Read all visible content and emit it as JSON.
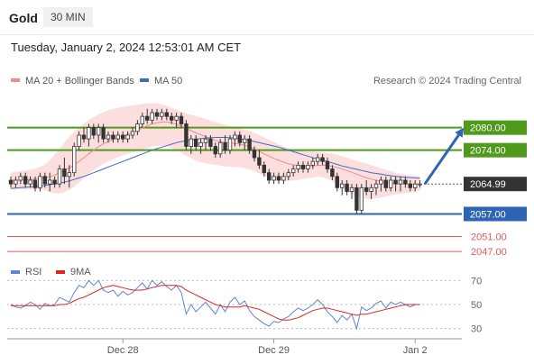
{
  "header": {
    "title": "Gold",
    "timeframe": "30 MIN"
  },
  "date_line": "Tuesday, January 2, 2024 12:53:01 AM CET",
  "legend": {
    "ma20": {
      "label": "MA 20 + Bollinger Bands",
      "color": "#f28b8b"
    },
    "ma50": {
      "label": "MA 50",
      "color": "#3b6fc2"
    }
  },
  "credit": "Research © 2024 Trading Central",
  "rsi_legend": {
    "rsi": {
      "label": "RSI",
      "color": "#5b86d6"
    },
    "ma9": {
      "label": "9MA",
      "color": "#e0221f"
    }
  },
  "chart_data": [
    {
      "type": "candlestick",
      "ylim": [
        2042,
        2090
      ],
      "x_ticks": [
        {
          "label": "Dec 28",
          "bar": 23
        },
        {
          "label": "Dec 29",
          "bar": 54
        },
        {
          "label": "Jan 2",
          "bar": 83
        }
      ],
      "ohlc": [
        [
          2066,
          2067,
          2064,
          2065
        ],
        [
          2065,
          2067,
          2064,
          2066
        ],
        [
          2066,
          2068,
          2065,
          2067
        ],
        [
          2067,
          2068,
          2064,
          2065
        ],
        [
          2065,
          2067,
          2064,
          2066
        ],
        [
          2066,
          2067,
          2063,
          2064
        ],
        [
          2064,
          2068,
          2063,
          2067
        ],
        [
          2067,
          2068,
          2064,
          2065
        ],
        [
          2065,
          2068,
          2063,
          2066
        ],
        [
          2066,
          2067,
          2064,
          2065
        ],
        [
          2065,
          2070,
          2064,
          2069
        ],
        [
          2069,
          2072,
          2065,
          2067
        ],
        [
          2067,
          2070,
          2064,
          2068
        ],
        [
          2068,
          2076,
          2067,
          2075
        ],
        [
          2075,
          2079,
          2074,
          2078
        ],
        [
          2078,
          2080,
          2076,
          2077
        ],
        [
          2077,
          2081,
          2075,
          2080
        ],
        [
          2080,
          2081,
          2077,
          2078
        ],
        [
          2078,
          2081,
          2076,
          2080
        ],
        [
          2080,
          2081,
          2076,
          2077
        ],
        [
          2077,
          2079,
          2076,
          2078
        ],
        [
          2078,
          2079,
          2076,
          2077
        ],
        [
          2077,
          2079,
          2076,
          2078
        ],
        [
          2078,
          2079,
          2076,
          2077
        ],
        [
          2077,
          2079,
          2076,
          2078
        ],
        [
          2078,
          2080,
          2077,
          2079
        ],
        [
          2079,
          2082,
          2078,
          2081
        ],
        [
          2081,
          2084,
          2080,
          2083
        ],
        [
          2083,
          2085,
          2081,
          2082
        ],
        [
          2082,
          2085,
          2081,
          2084
        ],
        [
          2084,
          2085,
          2082,
          2083
        ],
        [
          2083,
          2085,
          2082,
          2084
        ],
        [
          2084,
          2085,
          2082,
          2083
        ],
        [
          2083,
          2084,
          2081,
          2082
        ],
        [
          2082,
          2084,
          2080,
          2083
        ],
        [
          2083,
          2084,
          2080,
          2081
        ],
        [
          2081,
          2082,
          2074,
          2075
        ],
        [
          2075,
          2078,
          2073,
          2077
        ],
        [
          2077,
          2078,
          2074,
          2075
        ],
        [
          2075,
          2077,
          2073,
          2076
        ],
        [
          2076,
          2078,
          2074,
          2077
        ],
        [
          2077,
          2078,
          2074,
          2075
        ],
        [
          2075,
          2076,
          2072,
          2073
        ],
        [
          2073,
          2077,
          2072,
          2076
        ],
        [
          2076,
          2078,
          2073,
          2074
        ],
        [
          2074,
          2078,
          2073,
          2077
        ],
        [
          2077,
          2079,
          2075,
          2078
        ],
        [
          2078,
          2079,
          2075,
          2076
        ],
        [
          2076,
          2078,
          2074,
          2077
        ],
        [
          2077,
          2078,
          2073,
          2074
        ],
        [
          2074,
          2075,
          2071,
          2072
        ],
        [
          2072,
          2074,
          2069,
          2070
        ],
        [
          2070,
          2071,
          2067,
          2068
        ],
        [
          2068,
          2069,
          2065,
          2066
        ],
        [
          2066,
          2068,
          2065,
          2067
        ],
        [
          2067,
          2068,
          2065,
          2066
        ],
        [
          2066,
          2068,
          2065,
          2067
        ],
        [
          2067,
          2069,
          2066,
          2068
        ],
        [
          2068,
          2070,
          2067,
          2069
        ],
        [
          2069,
          2071,
          2068,
          2070
        ],
        [
          2070,
          2071,
          2068,
          2069
        ],
        [
          2069,
          2071,
          2068,
          2070
        ],
        [
          2070,
          2072,
          2069,
          2071
        ],
        [
          2071,
          2073,
          2070,
          2072
        ],
        [
          2072,
          2073,
          2070,
          2071
        ],
        [
          2071,
          2072,
          2068,
          2069
        ],
        [
          2069,
          2070,
          2066,
          2067
        ],
        [
          2067,
          2068,
          2063,
          2064
        ],
        [
          2064,
          2066,
          2062,
          2065
        ],
        [
          2065,
          2066,
          2062,
          2063
        ],
        [
          2063,
          2065,
          2061,
          2064
        ],
        [
          2064,
          2065,
          2057,
          2058
        ],
        [
          2058,
          2065,
          2057,
          2064
        ],
        [
          2064,
          2066,
          2062,
          2063
        ],
        [
          2063,
          2065,
          2061,
          2064
        ],
        [
          2064,
          2066,
          2062,
          2065
        ],
        [
          2065,
          2067,
          2063,
          2066
        ],
        [
          2066,
          2067,
          2063,
          2064
        ],
        [
          2064,
          2067,
          2063,
          2066
        ],
        [
          2066,
          2067,
          2063,
          2065
        ],
        [
          2065,
          2067,
          2063,
          2066
        ],
        [
          2066,
          2067,
          2064,
          2065
        ],
        [
          2065,
          2066,
          2063,
          2064
        ],
        [
          2064,
          2066,
          2063,
          2065
        ],
        [
          2065,
          2066,
          2064,
          2065
        ]
      ],
      "ma20": [
        2066.0,
        2066.0,
        2066.1,
        2066.1,
        2066.2,
        2066.3,
        2066.5,
        2066.7,
        2066.9,
        2067.4,
        2068.0,
        2068.6,
        2069.3,
        2070.1,
        2071.0,
        2072.0,
        2073.0,
        2074.0,
        2074.9,
        2075.7,
        2076.3,
        2076.9,
        2077.4,
        2077.8,
        2078.2,
        2078.7,
        2079.3,
        2079.9,
        2080.5,
        2081.0,
        2081.3,
        2081.5,
        2081.5,
        2081.3,
        2080.9,
        2080.4,
        2079.8,
        2079.2,
        2078.6,
        2078.1,
        2077.6,
        2077.1,
        2076.6,
        2076.3,
        2076.1,
        2075.9,
        2075.8,
        2075.6,
        2075.3,
        2074.9,
        2074.3,
        2073.7,
        2073.0,
        2072.4,
        2071.8,
        2071.3,
        2070.8,
        2070.4,
        2070.1,
        2069.9,
        2069.8,
        2069.8,
        2069.8,
        2069.9,
        2070.0,
        2069.9,
        2069.7,
        2069.4,
        2069.0,
        2068.6,
        2068.1,
        2067.6,
        2067.1,
        2066.7,
        2066.3,
        2066.0,
        2065.7,
        2065.5,
        2065.3,
        2065.1,
        2065.0,
        2065.0,
        2065.0,
        2065.0,
        2065.0
      ],
      "bb_upper": [
        2068.0,
        2068.2,
        2068.4,
        2068.6,
        2068.8,
        2069.1,
        2069.5,
        2070.2,
        2071.3,
        2072.8,
        2074.4,
        2076.0,
        2077.5,
        2078.9,
        2080.1,
        2081.1,
        2082.0,
        2082.8,
        2083.5,
        2084.1,
        2084.6,
        2085.0,
        2085.3,
        2085.5,
        2085.7,
        2085.9,
        2086.1,
        2086.3,
        2086.5,
        2086.6,
        2086.5,
        2086.2,
        2085.8,
        2085.3,
        2084.8,
        2084.2,
        2083.8,
        2083.4,
        2083.1,
        2082.7,
        2082.3,
        2081.9,
        2081.5,
        2081.1,
        2080.7,
        2080.4,
        2080.1,
        2079.8,
        2079.5,
        2079.1,
        2078.6,
        2078.0,
        2077.4,
        2076.8,
        2076.2,
        2075.6,
        2075.0,
        2074.5,
        2074.2,
        2074.0,
        2073.8,
        2073.7,
        2073.6,
        2073.5,
        2073.4,
        2073.3,
        2073.1,
        2072.8,
        2072.4,
        2072.0,
        2071.6,
        2071.2,
        2070.8,
        2070.4,
        2070.0,
        2069.6,
        2069.2,
        2068.8,
        2068.4,
        2068.0,
        2067.7,
        2067.5,
        2067.3,
        2067.2,
        2067.1
      ],
      "bb_lower": [
        2063.8,
        2063.6,
        2063.6,
        2063.6,
        2063.6,
        2063.5,
        2063.5,
        2063.3,
        2062.8,
        2062.5,
        2062.5,
        2062.8,
        2063.4,
        2064.3,
        2065.4,
        2066.5,
        2067.6,
        2068.6,
        2069.5,
        2070.3,
        2071.0,
        2071.6,
        2072.1,
        2072.6,
        2073.0,
        2073.4,
        2073.8,
        2074.2,
        2074.6,
        2075.0,
        2075.2,
        2075.2,
        2075.0,
        2074.6,
        2074.0,
        2073.3,
        2072.5,
        2071.8,
        2071.2,
        2070.8,
        2070.5,
        2070.3,
        2070.1,
        2069.9,
        2069.7,
        2069.6,
        2069.5,
        2069.4,
        2069.2,
        2068.9,
        2068.4,
        2067.8,
        2067.2,
        2066.6,
        2066.2,
        2065.9,
        2065.8,
        2065.8,
        2065.9,
        2066.1,
        2066.3,
        2066.5,
        2066.7,
        2066.9,
        2066.8,
        2066.4,
        2065.7,
        2064.8,
        2063.9,
        2063.0,
        2062.2,
        2061.6,
        2061.2,
        2061.0,
        2061.0,
        2061.2,
        2061.4,
        2061.7,
        2062.0,
        2062.2,
        2062.4,
        2062.6,
        2062.8,
        2063.0,
        2063.1
      ],
      "ma50": [
        2063.8,
        2063.9,
        2064.0,
        2064.1,
        2064.2,
        2064.3,
        2064.4,
        2064.6,
        2064.8,
        2065.0,
        2065.2,
        2065.5,
        2065.8,
        2066.2,
        2066.6,
        2067.0,
        2067.5,
        2068.0,
        2068.5,
        2069.0,
        2069.5,
        2070.0,
        2070.5,
        2071.0,
        2071.5,
        2072.0,
        2072.5,
        2073.0,
        2073.5,
        2074.0,
        2074.4,
        2074.8,
        2075.2,
        2075.6,
        2076.0,
        2076.3,
        2076.5,
        2076.7,
        2076.9,
        2077.1,
        2077.2,
        2077.3,
        2077.4,
        2077.4,
        2077.4,
        2077.3,
        2077.2,
        2077.0,
        2076.8,
        2076.6,
        2076.3,
        2076.0,
        2075.7,
        2075.4,
        2075.1,
        2074.8,
        2074.4,
        2074.0,
        2073.6,
        2073.2,
        2072.8,
        2072.4,
        2072.0,
        2071.6,
        2071.3,
        2071.0,
        2070.6,
        2070.2,
        2069.8,
        2069.5,
        2069.2,
        2068.9,
        2068.6,
        2068.3,
        2068.0,
        2067.8,
        2067.6,
        2067.4,
        2067.2,
        2067.0,
        2066.9,
        2066.8,
        2066.7,
        2066.6,
        2066.5
      ],
      "levels": [
        {
          "label": "2080.00",
          "value": 2080,
          "style": "resistance"
        },
        {
          "label": "2074.00",
          "value": 2074,
          "style": "resistance"
        },
        {
          "label": "2064.99",
          "value": 2064.99,
          "style": "last"
        },
        {
          "label": "2057.00",
          "value": 2057,
          "style": "support"
        },
        {
          "label": "2051.00",
          "value": 2051,
          "style": "minor"
        },
        {
          "label": "2047.00",
          "value": 2047,
          "style": "minor"
        }
      ],
      "arrow": {
        "from_bar": 85,
        "from_value": 2065,
        "to_bar": 93,
        "to_value": 2080,
        "color": "#2e64b4"
      },
      "colors": {
        "resistance": "#4f9a1a",
        "support": "#2e64b4",
        "minor": "#e15a5a",
        "last": "#333333",
        "band": "#fbd3d3",
        "candle": "#333333"
      }
    },
    {
      "type": "line",
      "ylim": [
        20,
        80
      ],
      "levels": [
        {
          "label": "70",
          "value": 70
        },
        {
          "label": "50",
          "value": 50
        },
        {
          "label": "30",
          "value": 30
        }
      ],
      "series": [
        {
          "name": "RSI",
          "color": "#5b86d6",
          "values": [
            50,
            48,
            47,
            49,
            52,
            50,
            46,
            51,
            49,
            50,
            56,
            54,
            52,
            60,
            66,
            64,
            70,
            66,
            70,
            62,
            60,
            62,
            57,
            61,
            58,
            60,
            64,
            68,
            63,
            70,
            66,
            69,
            65,
            62,
            66,
            60,
            42,
            50,
            44,
            48,
            52,
            47,
            42,
            50,
            44,
            52,
            56,
            50,
            53,
            45,
            40,
            37,
            34,
            32,
            36,
            35,
            38,
            40,
            44,
            47,
            45,
            47,
            50,
            54,
            50,
            44,
            40,
            35,
            41,
            37,
            42,
            30,
            48,
            45,
            47,
            51,
            53,
            47,
            52,
            50,
            52,
            50,
            48,
            50,
            50
          ]
        },
        {
          "name": "9MA",
          "color": "#e0221f",
          "values": [
            49,
            49,
            49,
            49,
            49,
            49,
            49,
            49,
            49,
            49,
            50,
            50,
            51,
            53,
            55,
            56,
            58,
            60,
            62,
            64,
            65,
            66,
            65,
            64,
            63,
            62,
            62,
            62,
            63,
            64,
            65,
            66,
            66,
            66,
            66,
            65,
            62,
            60,
            58,
            56,
            54,
            52,
            50,
            49,
            48,
            48,
            48,
            48,
            49,
            48,
            47,
            46,
            44,
            42,
            40,
            38,
            37,
            37,
            38,
            39,
            41,
            43,
            45,
            46,
            47,
            47,
            46,
            45,
            44,
            43,
            42,
            41,
            42,
            42,
            43,
            44,
            45,
            46,
            47,
            48,
            49,
            50,
            50,
            50,
            50
          ]
        }
      ]
    }
  ]
}
